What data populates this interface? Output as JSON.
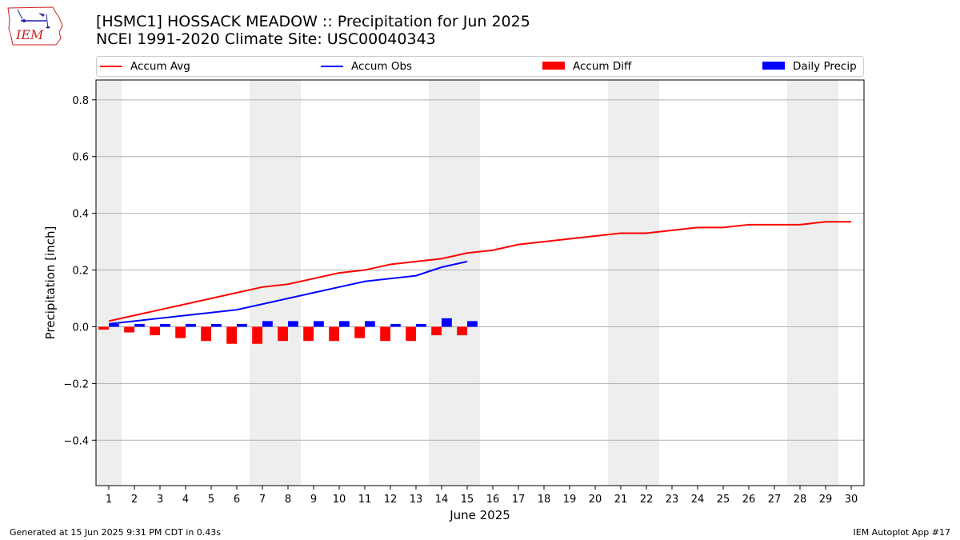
{
  "header": {
    "title_line1": "[HSMC1] HOSSACK MEADOW :: Precipitation for Jun 2025",
    "title_line2": "NCEI 1991-2020 Climate Site: USC00040343"
  },
  "logo": {
    "text": "IEM",
    "icon": "iem-iowa-weather-logo-icon"
  },
  "legend": [
    {
      "label": "Accum Avg",
      "kind": "line",
      "color": "#ff0000"
    },
    {
      "label": "Accum Obs",
      "kind": "line",
      "color": "#0000ff"
    },
    {
      "label": "Accum Diff",
      "kind": "bar",
      "color": "#ff0000"
    },
    {
      "label": "Daily Precip",
      "kind": "bar",
      "color": "#0000ff"
    }
  ],
  "footer": {
    "left": "Generated at 15 Jun 2025 9:31 PM CDT in 0.43s",
    "right": "IEM Autoplot App #17"
  },
  "chart_data": {
    "type": "bar",
    "xlabel": "June 2025",
    "ylabel": "Precipitation [inch]",
    "ylim": [
      -0.56,
      0.87
    ],
    "yticks": [
      -0.4,
      -0.2,
      0.0,
      0.2,
      0.4,
      0.6,
      0.8
    ],
    "ytick_labels": [
      "−0.4",
      "−0.2",
      "0.0",
      "0.2",
      "0.4",
      "0.6",
      "0.8"
    ],
    "grid": "horizontal",
    "legend_position": "top",
    "weekend_shading": [
      [
        1,
        1
      ],
      [
        7,
        8
      ],
      [
        14,
        15
      ],
      [
        21,
        22
      ],
      [
        28,
        29
      ]
    ],
    "days": [
      1,
      2,
      3,
      4,
      5,
      6,
      7,
      8,
      9,
      10,
      11,
      12,
      13,
      14,
      15,
      16,
      17,
      18,
      19,
      20,
      21,
      22,
      23,
      24,
      25,
      26,
      27,
      28,
      29,
      30
    ],
    "series": [
      {
        "name": "Accum Avg",
        "type": "line",
        "color": "#ff0000",
        "values": [
          0.02,
          0.04,
          0.06,
          0.08,
          0.1,
          0.12,
          0.14,
          0.15,
          0.17,
          0.19,
          0.2,
          0.22,
          0.23,
          0.24,
          0.26,
          0.27,
          0.29,
          0.3,
          0.31,
          0.32,
          0.33,
          0.33,
          0.34,
          0.35,
          0.35,
          0.36,
          0.36,
          0.36,
          0.37,
          0.37
        ]
      },
      {
        "name": "Accum Obs",
        "type": "line",
        "color": "#0000ff",
        "values": [
          0.01,
          0.02,
          0.03,
          0.04,
          0.05,
          0.06,
          0.08,
          0.1,
          0.12,
          0.14,
          0.16,
          0.17,
          0.18,
          0.21,
          0.23
        ]
      },
      {
        "name": "Accum Diff",
        "type": "bar",
        "color": "#ff0000",
        "values": [
          -0.01,
          -0.02,
          -0.03,
          -0.04,
          -0.05,
          -0.06,
          -0.06,
          -0.05,
          -0.05,
          -0.05,
          -0.04,
          -0.05,
          -0.05,
          -0.03,
          -0.03
        ]
      },
      {
        "name": "Daily Precip",
        "type": "bar",
        "color": "#0000ff",
        "values": [
          0.01,
          0.01,
          0.01,
          0.01,
          0.01,
          0.01,
          0.02,
          0.02,
          0.02,
          0.02,
          0.02,
          0.01,
          0.01,
          0.03,
          0.02
        ]
      }
    ]
  }
}
